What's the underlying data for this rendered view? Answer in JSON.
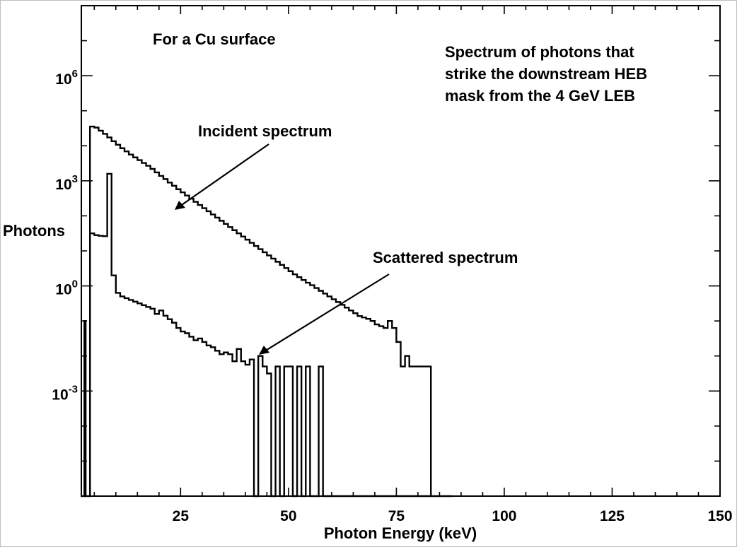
{
  "chart_data": {
    "type": "line",
    "step": true,
    "xlabel": "Photon Energy (keV)",
    "ylabel": "Photons",
    "x_range": [
      2,
      150
    ],
    "y_log_range": [
      -6,
      8
    ],
    "x_ticks": [
      25,
      50,
      75,
      100,
      125,
      150
    ],
    "x_tick_labels": [
      "25",
      "50",
      "75",
      "100",
      "125",
      "150"
    ],
    "y_tick_labels": [
      {
        "exp": 6,
        "base": "10",
        "sup": "6"
      },
      {
        "exp": 3,
        "base": "10",
        "sup": "3"
      },
      {
        "exp": 0,
        "base": "10",
        "sup": "0"
      },
      {
        "exp": -3,
        "base": "10",
        "sup": "-3"
      }
    ],
    "annotations": {
      "surface": "For a Cu surface",
      "description": [
        "Spectrum of photons that",
        "strike the downstream HEB",
        "mask from the 4 GeV LEB"
      ],
      "incident_label": "Incident spectrum",
      "scattered_label": "Scattered spectrum"
    },
    "series": [
      {
        "name": "Incident spectrum",
        "x_edges": [
          4,
          5,
          6,
          7,
          8,
          9,
          10,
          11,
          12,
          13,
          14,
          15,
          16,
          17,
          18,
          19,
          20,
          21,
          22,
          23,
          24,
          25,
          26,
          27,
          28,
          29,
          30,
          31,
          32,
          33,
          34,
          35,
          36,
          37,
          38,
          39,
          40,
          41,
          42,
          43,
          44,
          45,
          46,
          47,
          48,
          49,
          50,
          51,
          52,
          53,
          54,
          55,
          56,
          57,
          58,
          59,
          60,
          61,
          62,
          63,
          64,
          65,
          66,
          67,
          68,
          69,
          70,
          71,
          72,
          73,
          74,
          75,
          76,
          77,
          78,
          79,
          80,
          81,
          82,
          83
        ],
        "log_values": [
          4.55,
          4.52,
          4.43,
          4.34,
          4.24,
          4.13,
          4.03,
          3.93,
          3.84,
          3.75,
          3.67,
          3.59,
          3.51,
          3.43,
          3.34,
          3.24,
          3.14,
          3.05,
          2.95,
          2.86,
          2.76,
          2.67,
          2.58,
          2.49,
          2.4,
          2.31,
          2.22,
          2.13,
          2.04,
          1.95,
          1.86,
          1.77,
          1.68,
          1.59,
          1.5,
          1.41,
          1.32,
          1.23,
          1.14,
          1.05,
          0.96,
          0.87,
          0.78,
          0.69,
          0.6,
          0.51,
          0.42,
          0.33,
          0.25,
          0.17,
          0.09,
          0.02,
          -0.06,
          -0.14,
          -0.22,
          -0.3,
          -0.38,
          -0.46,
          -0.54,
          -0.62,
          -0.7,
          -0.78,
          -0.86,
          -0.9,
          -0.94,
          -1.0,
          -1.1,
          -1.15,
          -1.2,
          -1.0,
          -1.2,
          -1.6,
          -2.3,
          -2.0,
          -2.3,
          -2.3,
          -2.3,
          -2.3,
          -2.3
        ]
      },
      {
        "name": "Scattered spectrum",
        "x_edges": [
          2,
          2.7,
          3,
          4,
          5,
          6,
          7,
          8,
          9,
          10,
          11,
          12,
          13,
          14,
          15,
          16,
          17,
          18,
          19,
          20,
          21,
          22,
          23,
          24,
          25,
          26,
          27,
          28,
          29,
          30,
          31,
          32,
          33,
          34,
          35,
          36,
          37,
          38,
          39,
          40,
          41,
          42,
          43,
          44,
          45,
          46,
          47,
          48,
          49,
          50,
          51,
          52,
          53,
          54,
          55,
          56,
          57,
          58,
          59,
          60,
          61,
          88
        ],
        "log_values": [
          -6,
          -1,
          -6,
          1.5,
          1.45,
          1.43,
          1.42,
          3.2,
          0.3,
          -0.2,
          -0.3,
          -0.35,
          -0.4,
          -0.45,
          -0.5,
          -0.55,
          -0.6,
          -0.65,
          -0.8,
          -0.7,
          -0.85,
          -0.95,
          -1.05,
          -1.2,
          -1.3,
          -1.35,
          -1.45,
          -1.55,
          -1.5,
          -1.6,
          -1.7,
          -1.75,
          -1.85,
          -1.95,
          -1.9,
          -1.95,
          -2.15,
          -1.8,
          -2.15,
          -2.25,
          -2.1,
          -6,
          -2.0,
          -2.3,
          -2.5,
          -6,
          -2.3,
          -6,
          -2.3,
          -2.3,
          -6,
          -2.3,
          -6,
          -2.3,
          -6,
          -6,
          -2.3,
          -6,
          -6,
          -6,
          -6
        ]
      }
    ]
  }
}
